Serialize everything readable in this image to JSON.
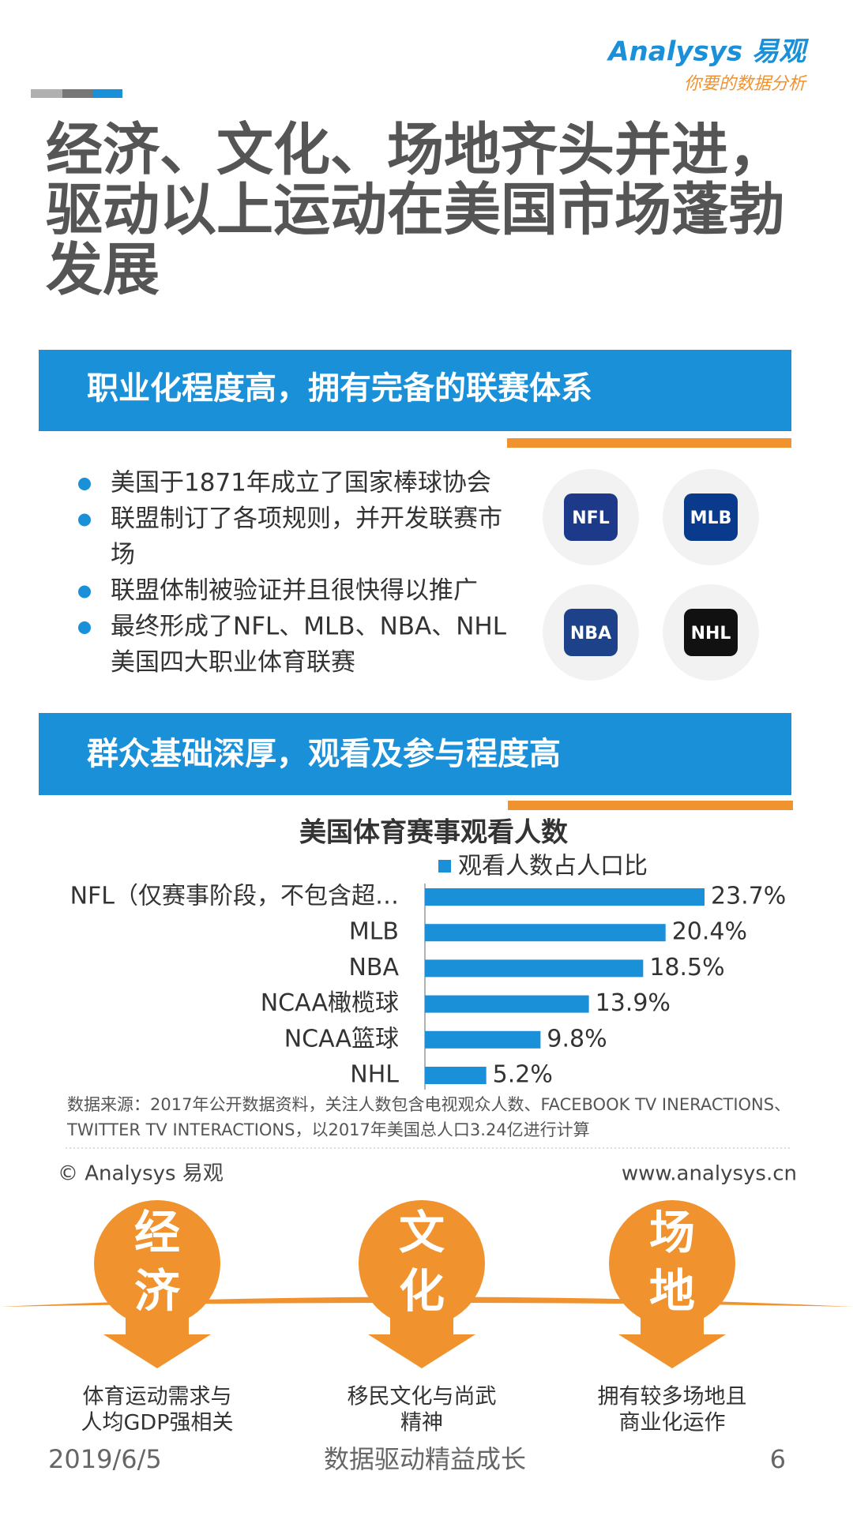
{
  "logo": {
    "brand": "Analysys 易观",
    "slogan": "你要的数据分析"
  },
  "title": [
    "经济、文化、场地齐头并进，",
    "驱动以上运动在美国市场蓬勃",
    "发展"
  ],
  "section1": {
    "heading": "职业化程度高，拥有完备的联赛体系",
    "bullets": [
      [
        "美国于1871年成立了国家棒球协会"
      ],
      [
        "联盟制订了各项规则，并开发联赛市",
        "场"
      ],
      [
        "联盟体制被验证并且很快得以推广"
      ],
      [
        "最终形成了NFL、MLB、NBA、NHL",
        "美国四大职业体育联赛"
      ]
    ],
    "logos": [
      "NFL",
      "MLB",
      "NBA",
      "NHL"
    ]
  },
  "section2": {
    "heading": "群众基础深厚，观看及参与程度高"
  },
  "chart_data": {
    "type": "bar",
    "orientation": "horizontal",
    "title": "美国体育赛事观看人数",
    "categories": [
      "NFL（仅赛事阶段，不包含超…",
      "MLB",
      "NBA",
      "NCAA橄榄球",
      "NCAA篮球",
      "NHL"
    ],
    "series": [
      {
        "name": "观看人数占人口比",
        "color": "#1a90d8",
        "values": [
          23.7,
          20.4,
          18.5,
          13.9,
          9.8,
          5.2
        ],
        "value_labels": [
          "23.7%",
          "20.4%",
          "18.5%",
          "13.9%",
          "9.8%",
          "5.2%"
        ]
      }
    ],
    "legend": "top"
  },
  "note": [
    "数据来源：2017年公开数据资料，关注人数包含电视观众人数、FACEBOOK TV INERACTIONS、",
    "TWITTER TV INTERACTIONS，以2017年美国总人口3.24亿进行计算"
  ],
  "copyright": "© Analysys 易观",
  "website": "www.analysys.cn",
  "factors": [
    {
      "chars": [
        "经",
        "济"
      ],
      "caption": [
        "体育运动需求与",
        "人均GDP强相关"
      ]
    },
    {
      "chars": [
        "文",
        "化"
      ],
      "caption": [
        "移民文化与尚武",
        "精神"
      ]
    },
    {
      "chars": [
        "场",
        "地"
      ],
      "caption": [
        "拥有较多场地且",
        "商业化运作"
      ]
    }
  ],
  "footer": {
    "date": "2019/6/5",
    "slogan": "数据驱动精益成长",
    "page": "6"
  }
}
